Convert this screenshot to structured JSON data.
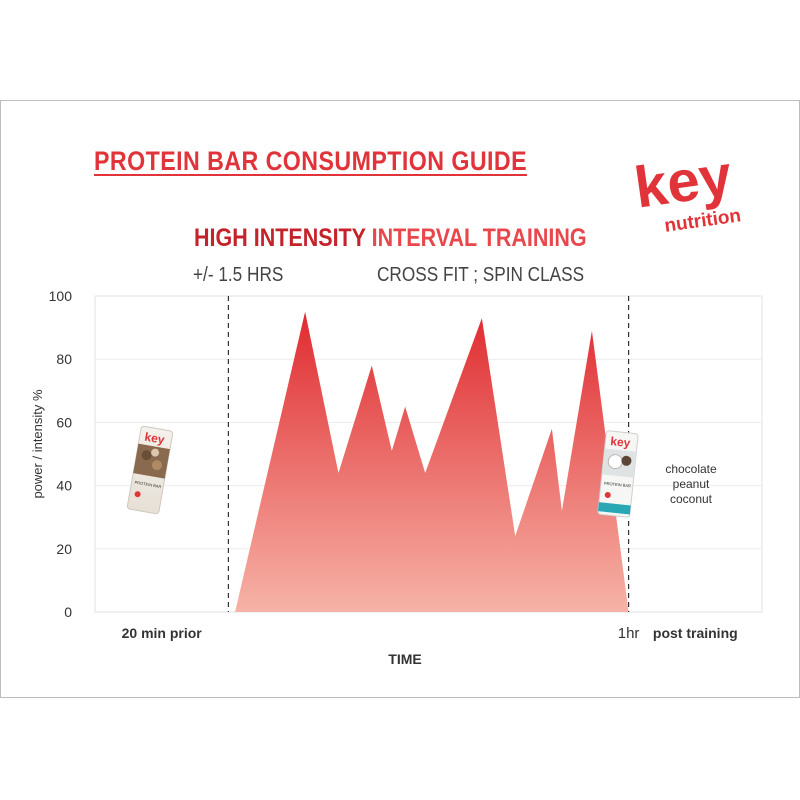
{
  "header": {
    "guide_title": "PROTEIN BAR CONSUMPTION GUIDE",
    "brand_name": "key",
    "brand_sub": "nutrition",
    "brand_color": "#e0343a"
  },
  "chart_data": {
    "type": "area",
    "title_part1": "HIGH INTENSITY",
    "title_part2": "INTERVAL TRAINING",
    "duration_label": "+/- 1.5 HRS",
    "activities_label": "CROSS FIT ; SPIN CLASS",
    "ylabel": "power / intensity %",
    "xlabel": "TIME",
    "ylim": [
      0,
      100
    ],
    "yticks": [
      0,
      20,
      40,
      60,
      80,
      100
    ],
    "xlim": [
      -20,
      80
    ],
    "x_unit": "minutes",
    "grid": true,
    "phase_markers": [
      0,
      60
    ],
    "phase_labels": [
      {
        "x": -10,
        "text": "20 min prior"
      },
      {
        "x": 60,
        "text": "1hr"
      },
      {
        "x": 70,
        "text": "post training"
      }
    ],
    "series": [
      {
        "x": [
          1,
          11.5,
          16.5,
          21.5,
          24.5,
          26.5,
          29.5,
          38,
          43,
          48.5,
          50,
          54.5,
          60
        ],
        "values": [
          0,
          95,
          44,
          78,
          51,
          65,
          44,
          93,
          24,
          58,
          32,
          89,
          0
        ]
      }
    ],
    "fill_color_top": "#e02b30",
    "fill_color_bottom": "#f6b3a7",
    "annotations": {
      "pre_bar": "pre-training protein bar",
      "post_bar_flavor": [
        "chocolate",
        "peanut",
        "coconut"
      ]
    }
  },
  "bars": {
    "pack_logo": "key",
    "pack_text": "PROTEIN BAR"
  }
}
